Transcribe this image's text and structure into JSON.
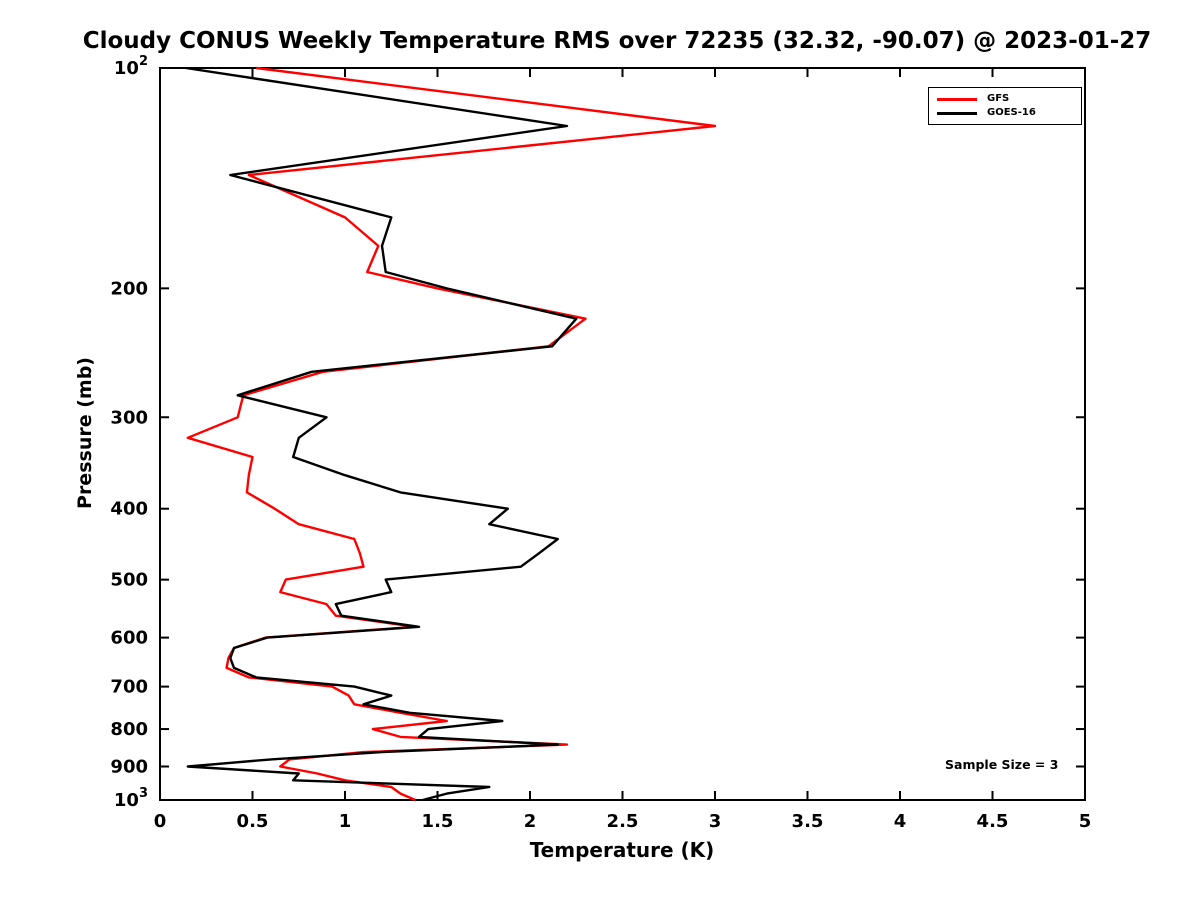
{
  "chart_data": {
    "type": "line",
    "title": "Cloudy CONUS Weekly Temperature RMS over 72235 (32.32, -90.07) @ 2023-01-27",
    "xlabel": "Temperature (K)",
    "ylabel": "Pressure (mb)",
    "xlim": [
      0,
      5
    ],
    "ylim": [
      100,
      1000
    ],
    "y_scale": "log10-inverted",
    "grid": "off",
    "annotation": "Sample Size = 3",
    "xticks": [
      {
        "v": 0,
        "label": "0"
      },
      {
        "v": 0.5,
        "label": "0.5"
      },
      {
        "v": 1,
        "label": "1"
      },
      {
        "v": 1.5,
        "label": "1.5"
      },
      {
        "v": 2,
        "label": "2"
      },
      {
        "v": 2.5,
        "label": "2.5"
      },
      {
        "v": 3,
        "label": "3"
      },
      {
        "v": 3.5,
        "label": "3.5"
      },
      {
        "v": 4,
        "label": "4"
      },
      {
        "v": 4.5,
        "label": "4.5"
      },
      {
        "v": 5,
        "label": "5"
      }
    ],
    "yticks": [
      {
        "v": 100,
        "label": "10",
        "exp": "2"
      },
      {
        "v": 200,
        "label": "200"
      },
      {
        "v": 300,
        "label": "300"
      },
      {
        "v": 400,
        "label": "400"
      },
      {
        "v": 500,
        "label": "500"
      },
      {
        "v": 600,
        "label": "600"
      },
      {
        "v": 700,
        "label": "700"
      },
      {
        "v": 800,
        "label": "800"
      },
      {
        "v": 900,
        "label": "900"
      },
      {
        "v": 1000,
        "label": "10",
        "exp": "3"
      }
    ],
    "legend": {
      "position": "top-right",
      "entries": [
        {
          "name": "GFS",
          "color": "#ff0000"
        },
        {
          "name": "GOES-16",
          "color": "#000000"
        }
      ]
    },
    "pressure_mb": [
      100,
      120,
      140,
      160,
      175,
      190,
      200,
      220,
      240,
      260,
      280,
      300,
      320,
      340,
      360,
      380,
      400,
      420,
      440,
      460,
      480,
      500,
      520,
      540,
      560,
      580,
      600,
      620,
      640,
      660,
      680,
      700,
      720,
      740,
      760,
      780,
      800,
      820,
      840,
      860,
      880,
      900,
      920,
      940,
      960,
      980,
      1000
    ],
    "series": [
      {
        "name": "GFS",
        "color": "#ff0000",
        "values": [
          0.52,
          3.0,
          0.48,
          1.0,
          1.18,
          1.12,
          1.5,
          2.3,
          2.1,
          0.88,
          0.45,
          0.42,
          0.15,
          0.5,
          0.48,
          0.47,
          0.62,
          0.75,
          1.05,
          1.08,
          1.1,
          0.68,
          0.65,
          0.9,
          0.95,
          1.38,
          0.57,
          0.4,
          0.37,
          0.36,
          0.48,
          0.93,
          1.02,
          1.05,
          1.3,
          1.55,
          1.15,
          1.3,
          2.2,
          1.1,
          0.7,
          0.65,
          0.85,
          1.0,
          1.25,
          1.3,
          1.38
        ]
      },
      {
        "name": "GOES-16",
        "color": "#000000",
        "values": [
          0.14,
          2.2,
          0.38,
          1.25,
          1.2,
          1.22,
          1.55,
          2.25,
          2.12,
          0.82,
          0.42,
          0.9,
          0.75,
          0.72,
          1.0,
          1.3,
          1.88,
          1.78,
          2.15,
          2.05,
          1.95,
          1.22,
          1.25,
          0.95,
          0.98,
          1.4,
          0.58,
          0.4,
          0.38,
          0.4,
          0.52,
          1.05,
          1.25,
          1.1,
          1.35,
          1.85,
          1.45,
          1.4,
          2.15,
          1.2,
          0.6,
          0.15,
          0.75,
          0.72,
          1.78,
          1.55,
          1.42
        ]
      }
    ]
  }
}
